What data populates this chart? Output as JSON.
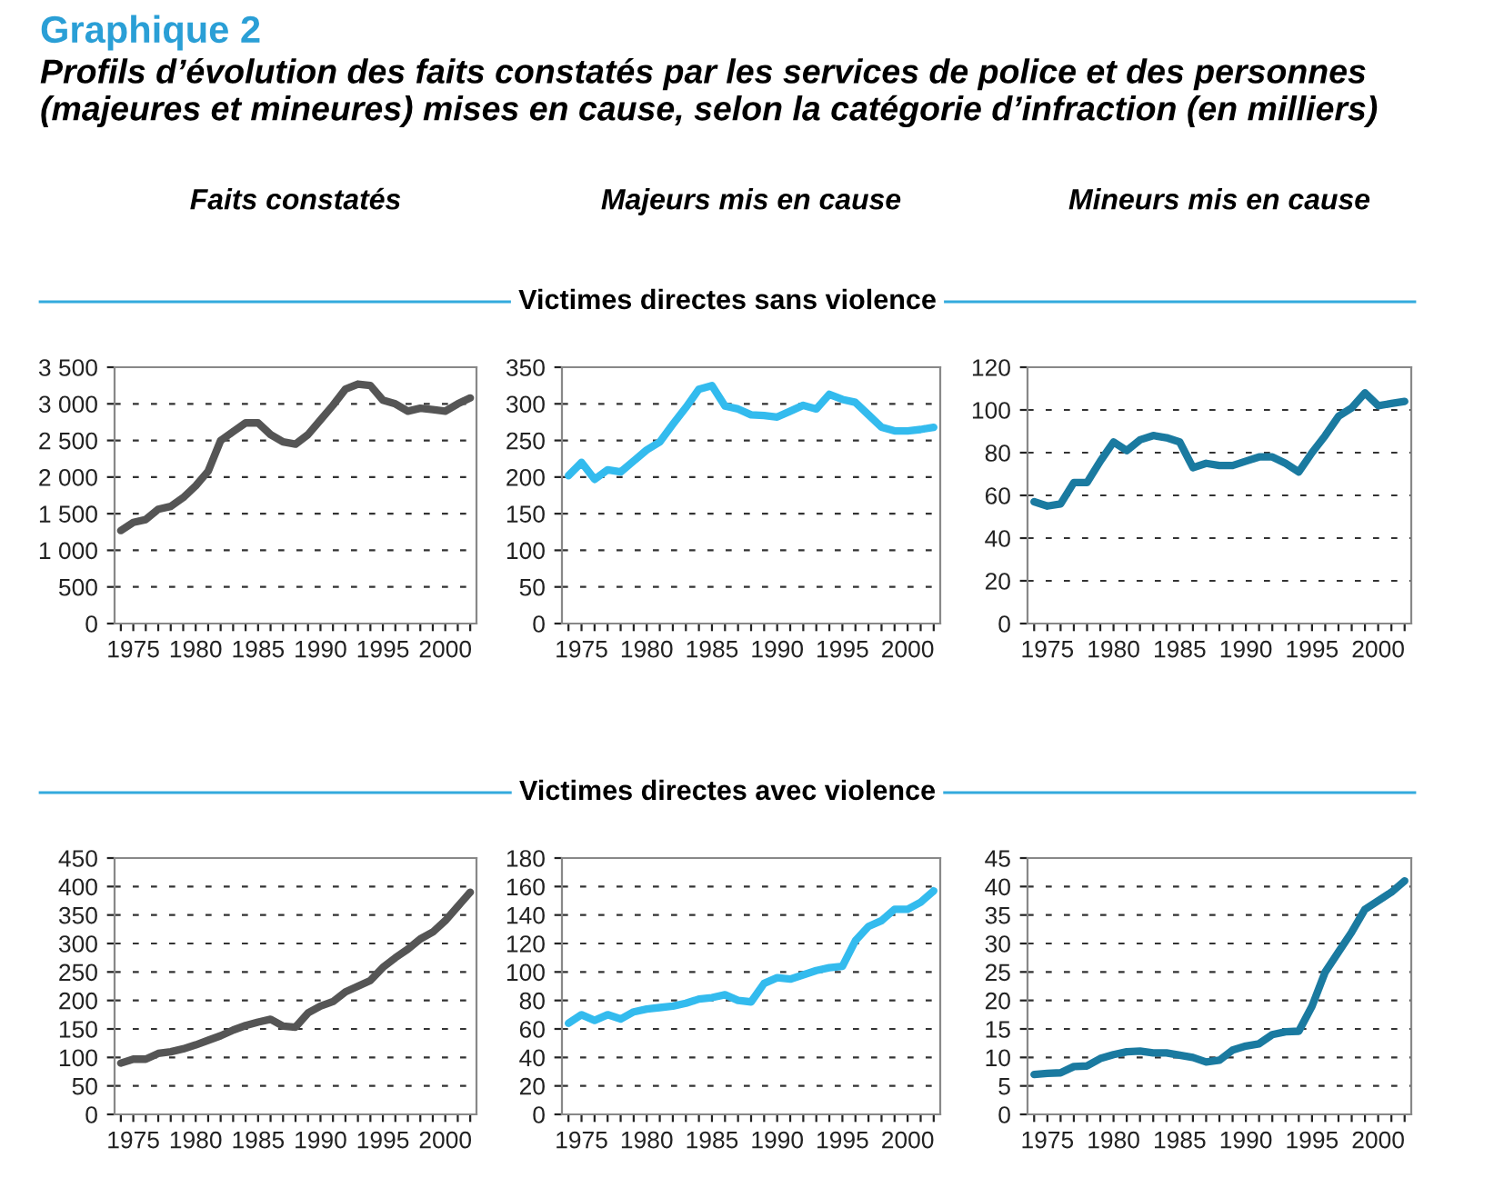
{
  "chart_data": [
    {
      "type": "other",
      "title": "Graphique 2",
      "subtitle": "Profils d’évolution des faits constatés par les services de police et des personnes (majeures et mineures) mises en cause, selon la catégorie d’infraction (en milliers)",
      "color": "#2a9fd6",
      "annotations": [
        "Victimes directes sans violence",
        "Victimes directes avec violence"
      ]
    },
    {
      "type": "line",
      "title": "Faits constatés",
      "color": "#555555",
      "x": [
        1974,
        1975,
        1976,
        1977,
        1978,
        1979,
        1980,
        1981,
        1982,
        1983,
        1984,
        1985,
        1986,
        1987,
        1988,
        1989,
        1990,
        1991,
        1992,
        1993,
        1994,
        1995,
        1996,
        1997,
        1998,
        1999,
        2000,
        2001,
        2002
      ],
      "values": [
        1270,
        1380,
        1420,
        1560,
        1600,
        1720,
        1880,
        2080,
        2500,
        2620,
        2740,
        2740,
        2580,
        2480,
        2450,
        2580,
        2780,
        2980,
        3200,
        3270,
        3250,
        3050,
        3000,
        2900,
        2940,
        2920,
        2900,
        3000,
        3080
      ],
      "xlim": [
        1973.5,
        2002.5
      ],
      "xticks": [
        {
          "value": 1974,
          "label": null
        },
        1975,
        {
          "value": 1976,
          "label": null
        },
        {
          "value": 1977,
          "label": null
        },
        {
          "value": 1978,
          "label": null
        },
        {
          "value": 1979,
          "label": null
        },
        1980,
        {
          "value": 1981,
          "label": null
        },
        {
          "value": 1982,
          "label": null
        },
        {
          "value": 1983,
          "label": null
        },
        {
          "value": 1984,
          "label": null
        },
        1985,
        {
          "value": 1986,
          "label": null
        },
        {
          "value": 1987,
          "label": null
        },
        {
          "value": 1988,
          "label": null
        },
        {
          "value": 1989,
          "label": null
        },
        1990,
        {
          "value": 1991,
          "label": null
        },
        {
          "value": 1992,
          "label": null
        },
        {
          "value": 1993,
          "label": null
        },
        {
          "value": 1994,
          "label": null
        },
        1995,
        {
          "value": 1996,
          "label": null
        },
        {
          "value": 1997,
          "label": null
        },
        {
          "value": 1998,
          "label": null
        },
        {
          "value": 1999,
          "label": null
        },
        2000,
        {
          "value": 2001,
          "label": null
        },
        {
          "value": 2002,
          "label": null
        }
      ],
      "ylim": [
        0,
        3500
      ],
      "yticks": [
        0,
        500,
        {
          "value": 1000,
          "label": "1 000"
        },
        {
          "value": 1500,
          "label": "1 500"
        },
        {
          "value": 2000,
          "label": "2 000"
        },
        {
          "value": 2500,
          "label": "2 500"
        },
        {
          "value": 3000,
          "label": "3 000"
        },
        {
          "value": 3500,
          "label": "3 500"
        }
      ],
      "grid": "y",
      "legend": false
    },
    {
      "type": "line",
      "title": "Majeurs mis en cause",
      "color": "#33bbee",
      "x": [
        1974,
        1975,
        1976,
        1977,
        1978,
        1979,
        1980,
        1981,
        1982,
        1983,
        1984,
        1985,
        1986,
        1987,
        1988,
        1989,
        1990,
        1991,
        1992,
        1993,
        1994,
        1995,
        1996,
        1997,
        1998,
        1999,
        2000,
        2001,
        2002
      ],
      "values": [
        202,
        220,
        197,
        210,
        207,
        222,
        237,
        248,
        272,
        295,
        320,
        325,
        297,
        293,
        285,
        284,
        282,
        290,
        298,
        293,
        313,
        306,
        302,
        285,
        268,
        263,
        263,
        265,
        268
      ],
      "xlim": [
        1973.5,
        2002.5
      ],
      "xticks": [
        {
          "value": 1974,
          "label": null
        },
        1975,
        {
          "value": 1976,
          "label": null
        },
        {
          "value": 1977,
          "label": null
        },
        {
          "value": 1978,
          "label": null
        },
        {
          "value": 1979,
          "label": null
        },
        1980,
        {
          "value": 1981,
          "label": null
        },
        {
          "value": 1982,
          "label": null
        },
        {
          "value": 1983,
          "label": null
        },
        {
          "value": 1984,
          "label": null
        },
        1985,
        {
          "value": 1986,
          "label": null
        },
        {
          "value": 1987,
          "label": null
        },
        {
          "value": 1988,
          "label": null
        },
        {
          "value": 1989,
          "label": null
        },
        1990,
        {
          "value": 1991,
          "label": null
        },
        {
          "value": 1992,
          "label": null
        },
        {
          "value": 1993,
          "label": null
        },
        {
          "value": 1994,
          "label": null
        },
        1995,
        {
          "value": 1996,
          "label": null
        },
        {
          "value": 1997,
          "label": null
        },
        {
          "value": 1998,
          "label": null
        },
        {
          "value": 1999,
          "label": null
        },
        2000,
        {
          "value": 2001,
          "label": null
        },
        {
          "value": 2002,
          "label": null
        }
      ],
      "ylim": [
        0,
        350
      ],
      "yticks": [
        0,
        50,
        100,
        150,
        200,
        250,
        300,
        350
      ],
      "grid": "y",
      "legend": false
    },
    {
      "type": "line",
      "title": "Mineurs mis en cause",
      "color": "#1a7aa0",
      "x": [
        1974,
        1975,
        1976,
        1977,
        1978,
        1979,
        1980,
        1981,
        1982,
        1983,
        1984,
        1985,
        1986,
        1987,
        1988,
        1989,
        1990,
        1991,
        1992,
        1993,
        1994,
        1995,
        1996,
        1997,
        1998,
        1999,
        2000,
        2001,
        2002
      ],
      "values": [
        57,
        55,
        56,
        66,
        66,
        76,
        85,
        81,
        86,
        88,
        87,
        85,
        73,
        75,
        74,
        74,
        76,
        78,
        78,
        75,
        71,
        80,
        88,
        97,
        101,
        108,
        102,
        103,
        104
      ],
      "xlim": [
        1973.5,
        2002.5
      ],
      "xticks": [
        {
          "value": 1974,
          "label": null
        },
        1975,
        {
          "value": 1976,
          "label": null
        },
        {
          "value": 1977,
          "label": null
        },
        {
          "value": 1978,
          "label": null
        },
        {
          "value": 1979,
          "label": null
        },
        1980,
        {
          "value": 1981,
          "label": null
        },
        {
          "value": 1982,
          "label": null
        },
        {
          "value": 1983,
          "label": null
        },
        {
          "value": 1984,
          "label": null
        },
        1985,
        {
          "value": 1986,
          "label": null
        },
        {
          "value": 1987,
          "label": null
        },
        {
          "value": 1988,
          "label": null
        },
        {
          "value": 1989,
          "label": null
        },
        1990,
        {
          "value": 1991,
          "label": null
        },
        {
          "value": 1992,
          "label": null
        },
        {
          "value": 1993,
          "label": null
        },
        {
          "value": 1994,
          "label": null
        },
        1995,
        {
          "value": 1996,
          "label": null
        },
        {
          "value": 1997,
          "label": null
        },
        {
          "value": 1998,
          "label": null
        },
        {
          "value": 1999,
          "label": null
        },
        2000,
        {
          "value": 2001,
          "label": null
        },
        {
          "value": 2002,
          "label": null
        }
      ],
      "ylim": [
        0,
        120
      ],
      "yticks": [
        0,
        20,
        40,
        60,
        80,
        100,
        120
      ],
      "grid": "y",
      "legend": false
    },
    {
      "type": "line",
      "color": "#555555",
      "x": [
        1974,
        1975,
        1976,
        1977,
        1978,
        1979,
        1980,
        1981,
        1982,
        1983,
        1984,
        1985,
        1986,
        1987,
        1988,
        1989,
        1990,
        1991,
        1992,
        1993,
        1994,
        1995,
        1996,
        1997,
        1998,
        1999,
        2000,
        2001,
        2002
      ],
      "values": [
        90,
        97,
        97,
        107,
        110,
        115,
        122,
        130,
        138,
        148,
        156,
        162,
        167,
        155,
        153,
        178,
        190,
        198,
        215,
        225,
        235,
        258,
        275,
        290,
        308,
        320,
        340,
        365,
        390
      ],
      "xlim": [
        1973.5,
        2002.5
      ],
      "xticks": [
        {
          "value": 1974,
          "label": null
        },
        1975,
        {
          "value": 1976,
          "label": null
        },
        {
          "value": 1977,
          "label": null
        },
        {
          "value": 1978,
          "label": null
        },
        {
          "value": 1979,
          "label": null
        },
        1980,
        {
          "value": 1981,
          "label": null
        },
        {
          "value": 1982,
          "label": null
        },
        {
          "value": 1983,
          "label": null
        },
        {
          "value": 1984,
          "label": null
        },
        1985,
        {
          "value": 1986,
          "label": null
        },
        {
          "value": 1987,
          "label": null
        },
        {
          "value": 1988,
          "label": null
        },
        {
          "value": 1989,
          "label": null
        },
        1990,
        {
          "value": 1991,
          "label": null
        },
        {
          "value": 1992,
          "label": null
        },
        {
          "value": 1993,
          "label": null
        },
        {
          "value": 1994,
          "label": null
        },
        1995,
        {
          "value": 1996,
          "label": null
        },
        {
          "value": 1997,
          "label": null
        },
        {
          "value": 1998,
          "label": null
        },
        {
          "value": 1999,
          "label": null
        },
        2000,
        {
          "value": 2001,
          "label": null
        },
        {
          "value": 2002,
          "label": null
        }
      ],
      "ylim": [
        0,
        450
      ],
      "yticks": [
        0,
        50,
        100,
        150,
        200,
        250,
        300,
        350,
        400,
        450
      ],
      "grid": "y",
      "legend": false
    },
    {
      "type": "line",
      "color": "#33bbee",
      "x": [
        1974,
        1975,
        1976,
        1977,
        1978,
        1979,
        1980,
        1981,
        1982,
        1983,
        1984,
        1985,
        1986,
        1987,
        1988,
        1989,
        1990,
        1991,
        1992,
        1993,
        1994,
        1995,
        1996,
        1997,
        1998,
        1999,
        2000,
        2001,
        2002
      ],
      "values": [
        64,
        70,
        66,
        70,
        67,
        72,
        74,
        75,
        76,
        78,
        81,
        82,
        84,
        80,
        79,
        92,
        96,
        95,
        98,
        101,
        103,
        104,
        122,
        132,
        136,
        144,
        144,
        149,
        157
      ],
      "xlim": [
        1973.5,
        2002.5
      ],
      "xticks": [
        {
          "value": 1974,
          "label": null
        },
        1975,
        {
          "value": 1976,
          "label": null
        },
        {
          "value": 1977,
          "label": null
        },
        {
          "value": 1978,
          "label": null
        },
        {
          "value": 1979,
          "label": null
        },
        1980,
        {
          "value": 1981,
          "label": null
        },
        {
          "value": 1982,
          "label": null
        },
        {
          "value": 1983,
          "label": null
        },
        {
          "value": 1984,
          "label": null
        },
        1985,
        {
          "value": 1986,
          "label": null
        },
        {
          "value": 1987,
          "label": null
        },
        {
          "value": 1988,
          "label": null
        },
        {
          "value": 1989,
          "label": null
        },
        1990,
        {
          "value": 1991,
          "label": null
        },
        {
          "value": 1992,
          "label": null
        },
        {
          "value": 1993,
          "label": null
        },
        {
          "value": 1994,
          "label": null
        },
        1995,
        {
          "value": 1996,
          "label": null
        },
        {
          "value": 1997,
          "label": null
        },
        {
          "value": 1998,
          "label": null
        },
        {
          "value": 1999,
          "label": null
        },
        2000,
        {
          "value": 2001,
          "label": null
        },
        {
          "value": 2002,
          "label": null
        }
      ],
      "ylim": [
        0,
        180
      ],
      "yticks": [
        0,
        20,
        40,
        60,
        80,
        100,
        120,
        140,
        160,
        180
      ],
      "grid": "y",
      "legend": false
    },
    {
      "type": "line",
      "color": "#1a7aa0",
      "x": [
        1974,
        1975,
        1976,
        1977,
        1978,
        1979,
        1980,
        1981,
        1982,
        1983,
        1984,
        1985,
        1986,
        1987,
        1988,
        1989,
        1990,
        1991,
        1992,
        1993,
        1994,
        1995,
        1996,
        1997,
        1998,
        1999,
        2000,
        2001,
        2002
      ],
      "values": [
        7,
        7.2,
        7.3,
        8.4,
        8.5,
        9.8,
        10.5,
        11,
        11.1,
        10.8,
        10.8,
        10.4,
        10,
        9.2,
        9.5,
        11.3,
        12,
        12.4,
        14,
        14.5,
        14.6,
        19,
        25,
        28.5,
        32,
        36,
        37.5,
        39,
        41
      ],
      "xlim": [
        1973.5,
        2002.5
      ],
      "xticks": [
        {
          "value": 1974,
          "label": null
        },
        1975,
        {
          "value": 1976,
          "label": null
        },
        {
          "value": 1977,
          "label": null
        },
        {
          "value": 1978,
          "label": null
        },
        {
          "value": 1979,
          "label": null
        },
        1980,
        {
          "value": 1981,
          "label": null
        },
        {
          "value": 1982,
          "label": null
        },
        {
          "value": 1983,
          "label": null
        },
        {
          "value": 1984,
          "label": null
        },
        1985,
        {
          "value": 1986,
          "label": null
        },
        {
          "value": 1987,
          "label": null
        },
        {
          "value": 1988,
          "label": null
        },
        {
          "value": 1989,
          "label": null
        },
        1990,
        {
          "value": 1991,
          "label": null
        },
        {
          "value": 1992,
          "label": null
        },
        {
          "value": 1993,
          "label": null
        },
        {
          "value": 1994,
          "label": null
        },
        1995,
        {
          "value": 1996,
          "label": null
        },
        {
          "value": 1997,
          "label": null
        },
        {
          "value": 1998,
          "label": null
        },
        {
          "value": 1999,
          "label": null
        },
        2000,
        {
          "value": 2001,
          "label": null
        },
        {
          "value": 2002,
          "label": null
        }
      ],
      "ylim": [
        0,
        45
      ],
      "yticks": [
        0,
        5,
        10,
        15,
        20,
        25,
        30,
        35,
        40,
        45
      ],
      "grid": "y",
      "legend": false
    }
  ]
}
